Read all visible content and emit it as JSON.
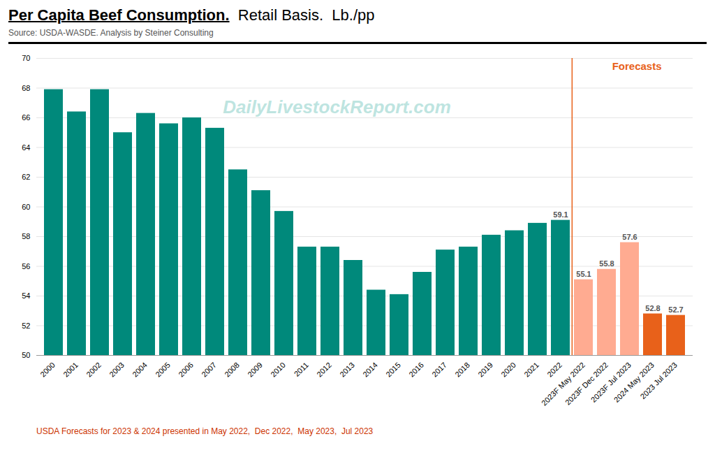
{
  "chart_data": {
    "type": "bar",
    "title": "Per Capita Beef Consumption.",
    "subtitle": "  Retail Basis.  Lb./pp",
    "annotations": [
      {
        "text": "Source: USDA-WASDE.  Analysis by Steiner Consulting",
        "color": "#555555"
      },
      {
        "text": "Forecasts",
        "color": "#E8611A"
      },
      {
        "text": "DailyLivestockReport.com",
        "color": "#B2DFDB"
      },
      {
        "text": "USDA Forecasts for 2023 & 2024 presented in May 2022,  Dec 2022,  May 2023,  Jul 2023",
        "color": "#CC3300"
      }
    ],
    "categories": [
      "2000",
      "2001",
      "2002",
      "2003",
      "2004",
      "2005",
      "2006",
      "2007",
      "2008",
      "2009",
      "2010",
      "2011",
      "2012",
      "2013",
      "2014",
      "2015",
      "2016",
      "2017",
      "2018",
      "2019",
      "2020",
      "2021",
      "2022",
      "2023F May 2022",
      "2023F Dec 2022",
      "2023F Jul 2023",
      "2024 May 2023",
      "2023 Jul 2023"
    ],
    "values": [
      67.9,
      66.4,
      67.9,
      65.0,
      66.3,
      65.6,
      66.0,
      65.3,
      62.5,
      61.1,
      59.7,
      57.3,
      57.3,
      56.4,
      54.4,
      54.1,
      55.6,
      57.1,
      57.3,
      58.1,
      58.4,
      58.9,
      59.1,
      55.1,
      55.8,
      57.6,
      52.8,
      52.7
    ],
    "colors": [
      "#00897B",
      "#00897B",
      "#00897B",
      "#00897B",
      "#00897B",
      "#00897B",
      "#00897B",
      "#00897B",
      "#00897B",
      "#00897B",
      "#00897B",
      "#00897B",
      "#00897B",
      "#00897B",
      "#00897B",
      "#00897B",
      "#00897B",
      "#00897B",
      "#00897B",
      "#00897B",
      "#00897B",
      "#00897B",
      "#00897B",
      "#FFAB91",
      "#FFAB91",
      "#FFAB91",
      "#E8611A",
      "#E8611A"
    ],
    "data_labels": true,
    "value_labels": [
      null,
      null,
      null,
      null,
      null,
      null,
      null,
      null,
      null,
      null,
      null,
      null,
      null,
      null,
      null,
      null,
      null,
      null,
      null,
      null,
      null,
      null,
      "59.1",
      "55.1",
      "55.8",
      "57.6",
      "52.8",
      "52.7"
    ],
    "ylim": [
      50.0,
      70.0
    ],
    "yticks": [
      50,
      52,
      54,
      56,
      58,
      60,
      62,
      64,
      66,
      68,
      70
    ],
    "grid": true
  }
}
